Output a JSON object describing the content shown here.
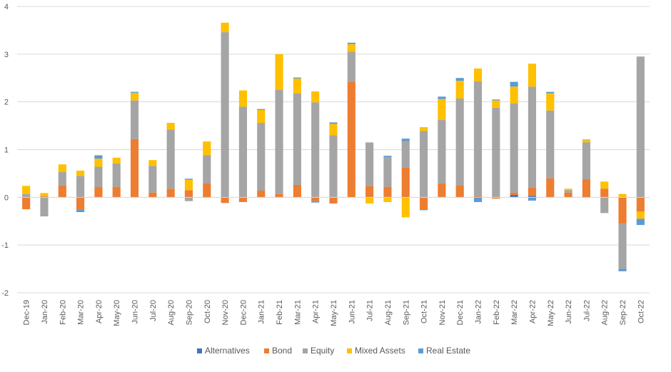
{
  "chart_data": {
    "type": "bar",
    "stacked": true,
    "title": "",
    "xlabel": "",
    "ylabel": "",
    "ylim": [
      -2,
      4
    ],
    "yticks": [
      -2,
      -1,
      0,
      1,
      2,
      3,
      4
    ],
    "grid": "horizontal",
    "legend_position": "bottom",
    "categories": [
      "Dec-19",
      "Jan-20",
      "Feb-20",
      "Mar-20",
      "Apr-20",
      "May-20",
      "Jun-20",
      "Jul-20",
      "Aug-20",
      "Sep-20",
      "Oct-20",
      "Nov-20",
      "Dec-20",
      "Jan-21",
      "Feb-21",
      "Mar-21",
      "Apr-21",
      "May-21",
      "Jun-21",
      "Jul-21",
      "Aug-21",
      "Sep-21",
      "Oct-21",
      "Nov-21",
      "Dec-21",
      "Jan-22",
      "Feb-22",
      "Mar-22",
      "Apr-22",
      "May-22",
      "Jun-22",
      "Jul-22",
      "Aug-22",
      "Sep-22",
      "Oct-22"
    ],
    "series": [
      {
        "name": "Alternatives",
        "color": "#4472C4",
        "values": [
          0,
          0.01,
          0,
          -0.01,
          0,
          0,
          0,
          0,
          0,
          0,
          -0.01,
          0,
          0,
          0,
          0,
          0,
          0,
          0,
          0,
          0,
          0,
          0,
          0,
          0,
          0,
          -0.02,
          0,
          0.05,
          0.03,
          0,
          0,
          -0.01,
          0,
          0,
          0
        ]
      },
      {
        "name": "Bond",
        "color": "#ED7D31",
        "values": [
          -0.25,
          0.01,
          0.25,
          -0.25,
          0.22,
          0.22,
          1.22,
          0.1,
          0.18,
          0.15,
          0.3,
          -0.12,
          -0.1,
          0.14,
          0.07,
          0.26,
          -0.08,
          -0.13,
          2.42,
          0.24,
          0.22,
          0.63,
          -0.25,
          0.29,
          0.25,
          0.02,
          -0.03,
          0.05,
          0.18,
          0.4,
          0.1,
          0.38,
          0.18,
          -0.55,
          -0.3
        ]
      },
      {
        "name": "Equity",
        "color": "#A5A5A5",
        "values": [
          0.07,
          -0.4,
          0.28,
          0.45,
          0.42,
          0.49,
          0.81,
          0.56,
          1.24,
          -0.08,
          0.58,
          3.46,
          1.9,
          1.42,
          2.18,
          1.92,
          1.99,
          1.3,
          0.63,
          0.91,
          0.62,
          0.55,
          1.39,
          1.33,
          1.82,
          2.41,
          1.88,
          1.87,
          2.11,
          1.42,
          0.05,
          0.77,
          -0.33,
          -0.95,
          2.95
        ]
      },
      {
        "name": "Mixed Assets",
        "color": "#FFC000",
        "values": [
          0.17,
          0.07,
          0.16,
          0.11,
          0.17,
          0.12,
          0.16,
          0.12,
          0.14,
          0.22,
          0.29,
          0.2,
          0.34,
          0.27,
          0.75,
          0.31,
          0.23,
          0.24,
          0.16,
          -0.13,
          -0.1,
          -0.42,
          0.08,
          0.44,
          0.37,
          0.27,
          0.15,
          0.35,
          0.48,
          0.36,
          0.03,
          0.05,
          0.15,
          0.07,
          -0.15
        ]
      },
      {
        "name": "Real Estate",
        "color": "#5B9BD5",
        "values": [
          0,
          0,
          0,
          -0.05,
          0.07,
          0,
          0.02,
          0,
          0,
          0.02,
          0,
          0,
          0,
          0.02,
          0,
          0.02,
          -0.03,
          0.03,
          0.03,
          0,
          0.03,
          0.05,
          -0.02,
          0.05,
          0.06,
          -0.08,
          0.02,
          0.1,
          -0.07,
          0.03,
          0,
          0.01,
          0,
          -0.05,
          -0.13
        ]
      }
    ]
  }
}
